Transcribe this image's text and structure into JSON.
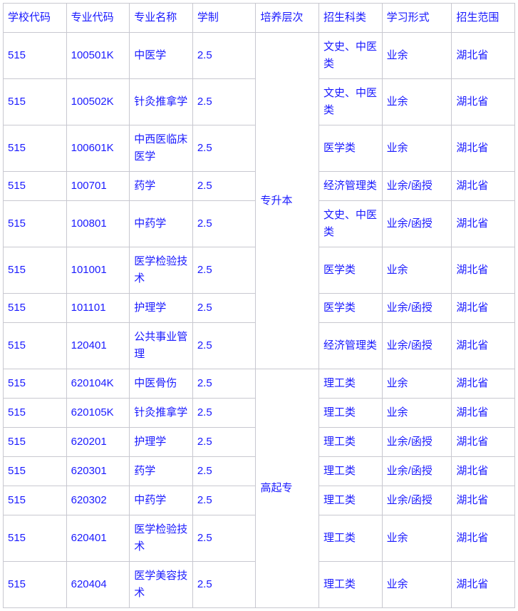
{
  "columns": [
    "学校代码",
    "专业代码",
    "专业名称",
    "学制",
    "培养层次",
    "招生科类",
    "学习形式",
    "招生范围"
  ],
  "groups": [
    {
      "level": "专升本",
      "rows": [
        {
          "school": "515",
          "major": "100501K",
          "name": "中医学",
          "duration": "2.5",
          "category": "文史、中医类",
          "mode": "业余",
          "scope": "湖北省"
        },
        {
          "school": "515",
          "major": "100502K",
          "name": "针灸推拿学",
          "duration": "2.5",
          "category": "文史、中医类",
          "mode": "业余",
          "scope": "湖北省"
        },
        {
          "school": "515",
          "major": "100601K",
          "name": "中西医临床医学",
          "duration": "2.5",
          "category": "医学类",
          "mode": "业余",
          "scope": "湖北省"
        },
        {
          "school": "515",
          "major": "100701",
          "name": "药学",
          "duration": "2.5",
          "category": "经济管理类",
          "mode": "业余/函授",
          "scope": "湖北省"
        },
        {
          "school": "515",
          "major": "100801",
          "name": "中药学",
          "duration": "2.5",
          "category": "文史、中医类",
          "mode": "业余/函授",
          "scope": "湖北省"
        },
        {
          "school": "515",
          "major": "101001",
          "name": "医学检验技术",
          "duration": "2.5",
          "category": "医学类",
          "mode": "业余",
          "scope": "湖北省"
        },
        {
          "school": "515",
          "major": "101101",
          "name": "护理学",
          "duration": "2.5",
          "category": "医学类",
          "mode": "业余/函授",
          "scope": "湖北省"
        },
        {
          "school": "515",
          "major": "120401",
          "name": "公共事业管理",
          "duration": "2.5",
          "category": "经济管理类",
          "mode": "业余/函授",
          "scope": "湖北省"
        }
      ]
    },
    {
      "level": "高起专",
      "rows": [
        {
          "school": "515",
          "major": "620104K",
          "name": "中医骨伤",
          "duration": "2.5",
          "category": "理工类",
          "mode": "业余",
          "scope": "湖北省"
        },
        {
          "school": "515",
          "major": "620105K",
          "name": "针灸推拿学",
          "duration": "2.5",
          "category": "理工类",
          "mode": "业余",
          "scope": "湖北省"
        },
        {
          "school": "515",
          "major": "620201",
          "name": "护理学",
          "duration": "2.5",
          "category": "理工类",
          "mode": "业余/函授",
          "scope": "湖北省"
        },
        {
          "school": "515",
          "major": "620301",
          "name": "药学",
          "duration": "2.5",
          "category": "理工类",
          "mode": "业余/函授",
          "scope": "湖北省"
        },
        {
          "school": "515",
          "major": "620302",
          "name": "中药学",
          "duration": "2.5",
          "category": "理工类",
          "mode": "业余/函授",
          "scope": "湖北省"
        },
        {
          "school": "515",
          "major": "620401",
          "name": "医学检验技术",
          "duration": "2.5",
          "category": "理工类",
          "mode": "业余",
          "scope": "湖北省"
        },
        {
          "school": "515",
          "major": "620404",
          "name": "医学美容技术",
          "duration": "2.5",
          "category": "理工类",
          "mode": "业余",
          "scope": "湖北省"
        }
      ]
    }
  ]
}
